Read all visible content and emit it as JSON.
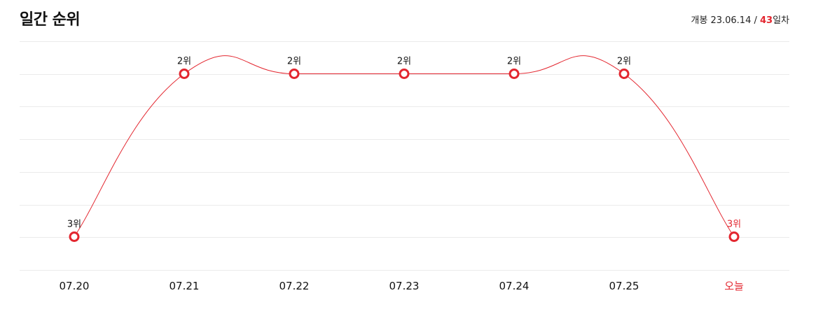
{
  "header": {
    "title": "일간 순위",
    "release_prefix": "개봉 23.06.14 / ",
    "day_count": "43",
    "day_suffix": "일차"
  },
  "colors": {
    "accent": "#e3262f",
    "grid": "#ebebeb"
  },
  "chart_data": {
    "type": "line",
    "title": "일간 순위",
    "categories": [
      "07.20",
      "07.21",
      "07.22",
      "07.23",
      "07.24",
      "07.25",
      "오늘"
    ],
    "series": [
      {
        "values": [
          3,
          2,
          2,
          2,
          2,
          2,
          3
        ],
        "labels": [
          "3위",
          "2위",
          "2위",
          "2위",
          "2위",
          "2위",
          "3위"
        ]
      }
    ],
    "highlight_category": "오늘",
    "y_axis_reversed": true,
    "grid": true,
    "legend": "none"
  }
}
